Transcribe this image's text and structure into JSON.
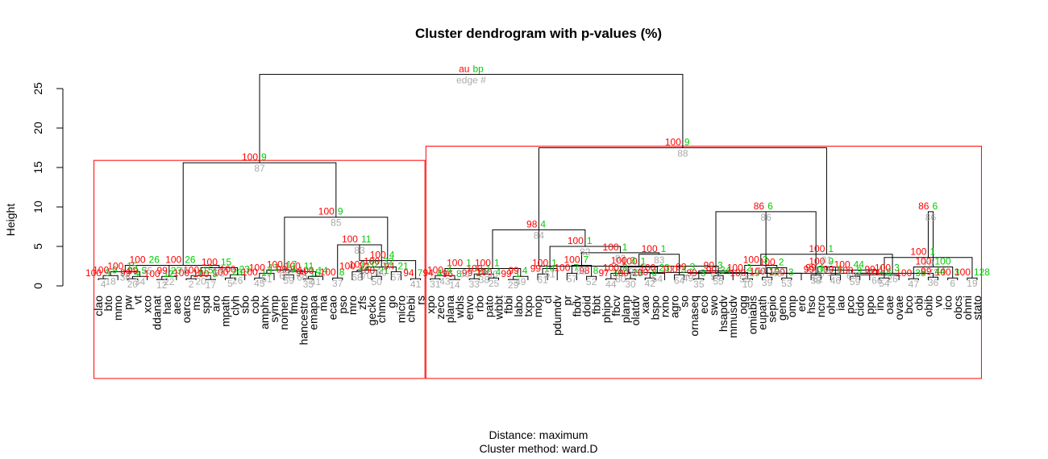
{
  "chart_data": {
    "type": "dendrogram",
    "title": "Cluster dendrogram with p-values (%)",
    "ylabel": "Height",
    "ylim": [
      0,
      28
    ],
    "yticks": [
      0,
      5,
      10,
      15,
      20,
      25
    ],
    "subtitle_lines": [
      "Distance:  maximum",
      "Cluster method: ward.D"
    ],
    "legend": {
      "au": "au",
      "bp": "bp",
      "edge": "edge #"
    },
    "colors": {
      "au": "#ff0000",
      "bp": "#00cc00",
      "edge": "#aaaaaa",
      "rect": "#ff0000",
      "line": "#000000"
    },
    "leaves": [
      "clao",
      "bto",
      "mmo",
      "pw",
      "vt",
      "xco",
      "ddanat",
      "hao",
      "aeo",
      "oarcs",
      "ms",
      "spd",
      "aro",
      "mpath",
      "clyh",
      "sbo",
      "cob",
      "amphx",
      "symp",
      "nomen",
      "fma",
      "hancestro",
      "emapa",
      "ma",
      "ecao",
      "pso",
      "mro",
      "zfs",
      "gecko",
      "chmo",
      "go",
      "micro",
      "chebi",
      "rs",
      "xpo",
      "zeco",
      "plana",
      "wbls",
      "envo",
      "rbo",
      "pato",
      "wbbt",
      "fbbi",
      "labo",
      "txpo",
      "mop",
      "cl",
      "pdumdv",
      "pr",
      "fbdv",
      "doid",
      "fbbt",
      "phipo",
      "fbcv",
      "planp",
      "olatdv",
      "xao",
      "bspo",
      "rxno",
      "agro",
      "so",
      "ornaseq",
      "eco",
      "swo",
      "hsapdv",
      "mmusdv",
      "ogg",
      "omiabis",
      "eupath",
      "sepio",
      "geno",
      "omp",
      "ero",
      "hso",
      "ncro",
      "ohd",
      "iao",
      "pco",
      "cido",
      "ppo",
      "ino",
      "oae",
      "ovae",
      "bco",
      "obi",
      "obib",
      "vo",
      "ico",
      "obcs",
      "ohmi",
      "stato"
    ],
    "merges": [
      {
        "l": 0,
        "r": 1,
        "h": 0.9,
        "au": "100",
        "bp": "9",
        "e": "4"
      },
      {
        "l": "m0",
        "r": 2,
        "h": 1.3,
        "au": "100",
        "bp": "9",
        "e": "18"
      },
      {
        "l": 3,
        "r": 4,
        "h": 0.9,
        "au": "99",
        "bp": "4",
        "e": "20"
      },
      {
        "l": "m2",
        "r": 5,
        "h": 1.2,
        "au": "99",
        "bp": "5",
        "e": "34"
      },
      {
        "l": "m1",
        "r": "m3",
        "h": 1.8,
        "au": "100",
        "bp": "15",
        "e": "36"
      },
      {
        "l": 6,
        "r": 7,
        "h": 0.8,
        "au": "100",
        "bp": "12",
        "e": "12"
      },
      {
        "l": "m5",
        "r": 8,
        "h": 1.2,
        "au": "99",
        "bp": "23",
        "e": "22"
      },
      {
        "l": "m4",
        "r": "m6",
        "h": 2.6,
        "au": "100",
        "bp": "26",
        "e": "75"
      },
      {
        "l": 9,
        "r": 10,
        "h": 0.9,
        "au": "100",
        "bp": "13",
        "e": "2"
      },
      {
        "l": 11,
        "r": 12,
        "h": 0.8,
        "au": "100",
        "bp": "5",
        "e": "17"
      },
      {
        "l": "m8",
        "r": "m9",
        "h": 1.3,
        "au": "100",
        "bp": "15",
        "e": "20"
      },
      {
        "l": 13,
        "r": 14,
        "h": 1.0,
        "au": "100",
        "bp": "20",
        "e": "5"
      },
      {
        "l": "m11",
        "r": 15,
        "h": 1.4,
        "au": "100",
        "bp": "23",
        "e": "26"
      },
      {
        "l": "m10",
        "r": "m12",
        "h": 2.3,
        "au": "100",
        "bp": "15",
        "e": "53"
      },
      {
        "l": "m7",
        "r": "m13",
        "h": 2.6,
        "au": "100",
        "bp": "26",
        "e": "75"
      },
      {
        "l": 16,
        "r": 17,
        "h": 1.0,
        "au": "100",
        "bp": "10",
        "e": "45"
      },
      {
        "l": "m15",
        "r": 18,
        "h": 1.6,
        "au": "100",
        "bp": "17",
        "e": "51"
      },
      {
        "l": 19,
        "r": 20,
        "h": 1.4,
        "au": "99",
        "bp": "9",
        "e": "59"
      },
      {
        "l": 21,
        "r": 22,
        "h": 0.9,
        "au": "94",
        "bp": "15",
        "e": "35"
      },
      {
        "l": "m18",
        "r": 23,
        "h": 1.2,
        "au": "100",
        "bp": "14",
        "e": "41"
      },
      {
        "l": "m17",
        "r": "m19",
        "h": 1.8,
        "au": "100",
        "bp": "11",
        "e": "60"
      },
      {
        "l": "m16",
        "r": "m20",
        "h": 2.0,
        "au": "100",
        "bp": "17",
        "e": "60"
      },
      {
        "l": 24,
        "r": 25,
        "h": 1.0,
        "au": "100",
        "bp": "8",
        "e": "37"
      },
      {
        "l": 26,
        "r": 27,
        "h": 1.8,
        "au": "100",
        "bp": "32",
        "e": "68"
      },
      {
        "l": 28,
        "r": 29,
        "h": 1.2,
        "au": "100",
        "bp": "21",
        "e": "50"
      },
      {
        "l": "m23",
        "r": "m24",
        "h": 2.0,
        "au": "100",
        "bp": "32",
        "e": "70"
      },
      {
        "l": 30,
        "r": 31,
        "h": 1.8,
        "au": "94",
        "bp": "21",
        "e": "57"
      },
      {
        "l": "m25",
        "r": "m26",
        "h": 2.4,
        "au": "100",
        "bp": "32",
        "e": "60"
      },
      {
        "l": "m22",
        "r": "m27",
        "h": 5.2,
        "au": "100",
        "bp": "11",
        "e": "83"
      },
      {
        "l": 32,
        "r": 33,
        "h": 0.9,
        "au": "94",
        "bp": "7",
        "e": "41"
      },
      {
        "l": "m28",
        "r": "m29",
        "h": 3.2,
        "au": "100",
        "bp": "4",
        "e": "77"
      },
      {
        "l": "m21",
        "r": "m30",
        "h": 8.7,
        "au": "100",
        "bp": "9",
        "e": "85"
      },
      {
        "l": "m14",
        "r": "m31",
        "h": 15.6,
        "au": "100",
        "bp": "9",
        "e": "87"
      },
      {
        "l": 34,
        "r": 35,
        "h": 0.9,
        "au": "94",
        "bp": "4",
        "e": "31"
      },
      {
        "l": 36,
        "r": 37,
        "h": 0.8,
        "au": "96",
        "bp": "8",
        "e": "14"
      },
      {
        "l": "m33",
        "r": "m34",
        "h": 1.3,
        "au": "100",
        "bp": "4",
        "e": "43"
      },
      {
        "l": 38,
        "r": 39,
        "h": 0.9,
        "au": "99",
        "bp": "2",
        "e": "33"
      },
      {
        "l": 40,
        "r": 41,
        "h": 1.0,
        "au": "100",
        "bp": "4",
        "e": "25"
      },
      {
        "l": "m36",
        "r": "m37",
        "h": 1.5,
        "au": "100",
        "bp": "1",
        "e": "38"
      },
      {
        "l": "m35",
        "r": "m38",
        "h": 2.2,
        "au": "100",
        "bp": "1",
        "e": "50"
      },
      {
        "l": 42,
        "r": 43,
        "h": 0.8,
        "au": "99",
        "bp": "1",
        "e": "29"
      },
      {
        "l": "m40",
        "r": 44,
        "h": 1.2,
        "au": "99",
        "bp": "4",
        "e": "49"
      },
      {
        "l": "m39",
        "r": "m41",
        "h": 2.2,
        "au": "100",
        "bp": "1",
        "e": "50"
      },
      {
        "l": 45,
        "r": 46,
        "h": 1.5,
        "au": "99",
        "bp": "14",
        "e": "61"
      },
      {
        "l": "m43",
        "r": 47,
        "h": 2.2,
        "au": "100",
        "bp": "1",
        "e": "51"
      },
      {
        "l": 48,
        "r": 49,
        "h": 1.6,
        "au": "100",
        "bp": "7",
        "e": "57"
      },
      {
        "l": 50,
        "r": 51,
        "h": 1.2,
        "au": "98",
        "bp": "8",
        "e": "52"
      },
      {
        "l": "m45",
        "r": "m46",
        "h": 2.6,
        "au": "100",
        "bp": "7",
        "e": "82"
      },
      {
        "l": 52,
        "r": 53,
        "h": 0.9,
        "au": "97",
        "bp": "30",
        "e": "44"
      },
      {
        "l": 54,
        "r": 55,
        "h": 0.9,
        "au": "100",
        "bp": "23",
        "e": "30"
      },
      {
        "l": "m48",
        "r": "m49",
        "h": 1.6,
        "au": "100",
        "bp": "8",
        "e": "80"
      },
      {
        "l": 56,
        "r": 57,
        "h": 1.0,
        "au": "100",
        "bp": "8",
        "e": "42"
      },
      {
        "l": "m51",
        "r": 58,
        "h": 1.6,
        "au": "100",
        "bp": "23",
        "e": "54"
      },
      {
        "l": "m50",
        "r": "m52",
        "h": 2.4,
        "au": "100",
        "bp": "1",
        "e": "80"
      },
      {
        "l": 59,
        "r": 60,
        "h": 1.4,
        "au": "100",
        "bp": "3",
        "e": "64"
      },
      {
        "l": "m53",
        "r": "m54",
        "h": 4.0,
        "au": "100",
        "bp": "1",
        "e": "83"
      },
      {
        "l": "m47",
        "r": "m55",
        "h": 4.2,
        "au": "100",
        "bp": "1",
        "e": "82"
      },
      {
        "l": "m44",
        "r": "m56",
        "h": 5.0,
        "au": "100",
        "bp": "1",
        "e": "82"
      },
      {
        "l": "m42",
        "r": "m57",
        "h": 7.1,
        "au": "98",
        "bp": "4",
        "e": "84"
      },
      {
        "l": 61,
        "r": 62,
        "h": 0.9,
        "au": "99",
        "bp": "3",
        "e": "35"
      },
      {
        "l": 63,
        "r": 64,
        "h": 1.3,
        "au": "99",
        "bp": "34",
        "e": "55"
      },
      {
        "l": "m59",
        "r": 65,
        "h": 1.9,
        "au": "90",
        "bp": "3",
        "e": "58"
      },
      {
        "l": "m58",
        "r": "m60",
        "h": 2.5,
        "au": "100",
        "bp": "3",
        "e": "79"
      },
      {
        "l": 66,
        "r": 67,
        "h": 0.9,
        "au": "100",
        "bp": "19",
        "e": "10"
      },
      {
        "l": 68,
        "r": 69,
        "h": 1.1,
        "au": "100",
        "bp": "19",
        "e": "39"
      },
      {
        "l": "m62",
        "r": "m63",
        "h": 1.7,
        "au": "99",
        "bp": "3",
        "e": "49"
      },
      {
        "l": 70,
        "r": 71,
        "h": 1.0,
        "au": "100",
        "bp": "3",
        "e": "53"
      },
      {
        "l": "m65",
        "r": 72,
        "h": 1.6,
        "au": "100",
        "bp": "2",
        "e": "55"
      },
      {
        "l": "m64",
        "r": "m66",
        "h": 2.3,
        "au": "100",
        "bp": "2",
        "e": "48"
      },
      {
        "l": 73,
        "r": 74,
        "h": 1.4,
        "au": "99",
        "bp": "3",
        "e": "38"
      },
      {
        "l": "m67",
        "r": "m68",
        "h": 2.6,
        "au": "100",
        "bp": "3",
        "e": "79"
      },
      {
        "l": "m61",
        "r": "m69",
        "h": 9.4,
        "au": "86",
        "bp": "6",
        "e": "86"
      },
      {
        "l": 75,
        "r": 76,
        "h": 1.4,
        "au": "99",
        "bp": "9",
        "e": "46"
      },
      {
        "l": 77,
        "r": 78,
        "h": 1.2,
        "au": "100",
        "bp": "9",
        "e": "59"
      },
      {
        "l": "m71",
        "r": 79,
        "h": 1.6,
        "au": "99",
        "bp": "1",
        "e": "62"
      },
      {
        "l": 80,
        "r": 81,
        "h": 1.0,
        "au": "100",
        "bp": "8",
        "e": "54"
      },
      {
        "l": "m73",
        "r": 82,
        "h": 1.4,
        "au": "99",
        "bp": "1",
        "e": "66"
      },
      {
        "l": "m72",
        "r": "m74",
        "h": 2.4,
        "au": "100",
        "bp": "9",
        "e": "71"
      },
      {
        "l": 83,
        "r": 84,
        "h": 0.9,
        "au": "100",
        "bp": "35",
        "e": "47"
      },
      {
        "l": 85,
        "r": 86,
        "h": 1.1,
        "au": "99",
        "bp": "44",
        "e": "36"
      },
      {
        "l": "m76",
        "r": "m77",
        "h": 2.0,
        "au": "100",
        "bp": "44",
        "e": "69"
      },
      {
        "l": 87,
        "r": 88,
        "h": 1.0,
        "au": "100",
        "bp": "3",
        "e": "6"
      },
      {
        "l": 89,
        "r": 90,
        "h": 1.0,
        "au": "100",
        "bp": "128",
        "e": "19"
      },
      {
        "l": "m79",
        "r": "m80",
        "h": 1.6,
        "au": "100",
        "bp": "3",
        "e": "26"
      },
      {
        "l": "m78",
        "r": "m81",
        "h": 2.4,
        "au": "100",
        "bp": "100",
        "e": "72"
      },
      {
        "l": "m75",
        "r": "m82",
        "h": 3.6,
        "au": "100",
        "bp": "1",
        "e": "79"
      },
      {
        "l": "m70",
        "r": "m83",
        "h": 4.0,
        "au": "100",
        "bp": "1",
        "e": "81"
      },
      {
        "l": "m84",
        "r": "m85",
        "h": 9.4,
        "au": "86",
        "bp": "6",
        "e": "86"
      },
      {
        "l": "m59b",
        "r": "m59b",
        "h": 0,
        "au": "",
        "bp": "",
        "e": ""
      }
    ],
    "top_merges_note": "",
    "clusters": [
      {
        "from": 0,
        "to": 33
      },
      {
        "from": 34,
        "to": 90
      }
    ],
    "root": {
      "au": "au",
      "bp": "bp",
      "e": "edge #"
    }
  }
}
